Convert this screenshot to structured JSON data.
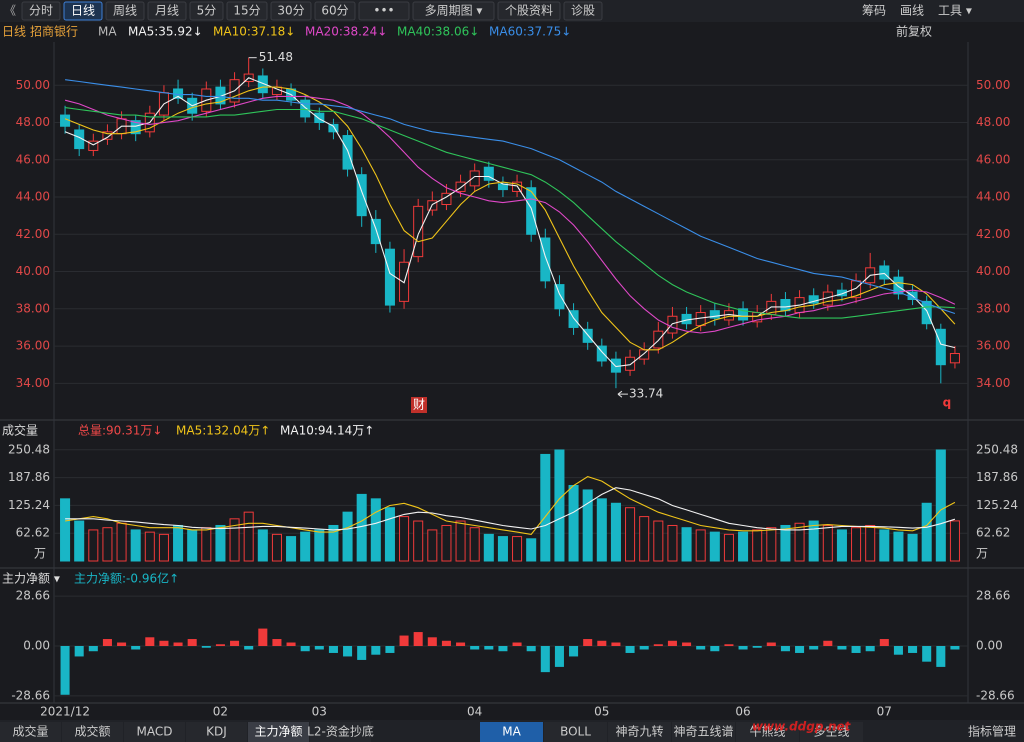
{
  "toolbar": {
    "back": "《",
    "buttons": [
      "分时",
      "日线",
      "周线",
      "月线",
      "5分",
      "15分",
      "30分",
      "60分",
      "•••",
      "多周期图 ▾",
      "个股资料",
      "诊股"
    ],
    "active": "日线",
    "right": [
      "筹码",
      "画线",
      "工具 ▾"
    ]
  },
  "chart_data": [
    {
      "type": "candlestick",
      "period": "日线",
      "stock": "招商银行",
      "indicator": "MA",
      "adjust": "前复权",
      "up_color": "#f03a3a",
      "down_color": "#19b6c6",
      "axis_color": "#e04848",
      "grid": true,
      "markers": [
        "财",
        "q"
      ],
      "categories": [
        "2021/12",
        null,
        null,
        null,
        null,
        null,
        null,
        null,
        null,
        null,
        null,
        "02",
        null,
        null,
        null,
        null,
        null,
        null,
        "03",
        null,
        null,
        null,
        null,
        null,
        null,
        null,
        null,
        null,
        null,
        "04",
        null,
        null,
        null,
        null,
        null,
        null,
        null,
        null,
        "05",
        null,
        null,
        null,
        null,
        null,
        null,
        null,
        null,
        null,
        "06",
        null,
        null,
        null,
        null,
        null,
        null,
        null,
        null,
        null,
        "07",
        null,
        null,
        null,
        null,
        null
      ],
      "open": [
        48.4,
        47.6,
        46.5,
        47.1,
        47.4,
        48.1,
        47.5,
        48.4,
        49.8,
        49.3,
        48.6,
        49.9,
        49.1,
        50.2,
        50.5,
        49.5,
        49.8,
        49.2,
        48.5,
        47.9,
        47.3,
        45.2,
        42.8,
        41.2,
        38.4,
        40.8,
        43.3,
        43.6,
        44.3,
        44.6,
        45.6,
        44.7,
        44.3,
        44.5,
        41.8,
        39.3,
        37.9,
        36.9,
        36.0,
        35.3,
        34.7,
        35.3,
        35.9,
        36.7,
        37.7,
        37.1,
        37.9,
        37.4,
        38.0,
        37.3,
        37.7,
        38.5,
        37.8,
        38.7,
        38.2,
        39.0,
        38.6,
        39.4,
        40.3,
        39.7,
        38.9,
        38.4,
        36.9,
        35.1
      ],
      "high": [
        48.9,
        47.9,
        47.4,
        47.9,
        48.6,
        48.4,
        48.9,
        50.0,
        50.3,
        49.6,
        50.2,
        50.3,
        50.7,
        51.48,
        50.9,
        50.3,
        50.1,
        49.5,
        48.8,
        48.2,
        47.6,
        45.6,
        43.3,
        41.6,
        41.2,
        43.9,
        44.3,
        44.7,
        45.2,
        45.8,
        45.9,
        45.1,
        45.2,
        44.9,
        42.3,
        39.8,
        38.3,
        37.3,
        36.4,
        35.7,
        35.8,
        36.2,
        37.3,
        38.1,
        38.1,
        38.2,
        38.3,
        38.3,
        38.4,
        38.2,
        38.8,
        38.9,
        39.0,
        39.1,
        39.3,
        39.4,
        39.9,
        41.0,
        40.6,
        40.1,
        39.3,
        38.7,
        37.2,
        36.0
      ],
      "low": [
        47.4,
        46.2,
        46.2,
        46.8,
        47.1,
        47.0,
        47.2,
        48.1,
        49.0,
        48.1,
        48.3,
        48.7,
        48.8,
        49.9,
        49.3,
        49.2,
        48.9,
        48.0,
        47.6,
        47.1,
        45.1,
        42.4,
        41.0,
        37.8,
        38.0,
        40.5,
        43.0,
        43.3,
        44.0,
        44.3,
        44.5,
        44.0,
        44.0,
        41.6,
        39.1,
        37.6,
        36.6,
        35.8,
        34.9,
        33.74,
        34.4,
        35.0,
        35.6,
        36.4,
        36.9,
        36.8,
        37.1,
        37.1,
        37.1,
        37.0,
        37.4,
        37.6,
        37.5,
        38.0,
        37.9,
        38.4,
        38.3,
        39.1,
        39.3,
        38.5,
        38.2,
        36.9,
        34.0,
        34.8
      ],
      "close": [
        47.8,
        46.6,
        47.0,
        47.5,
        48.2,
        47.4,
        48.5,
        49.6,
        49.3,
        48.5,
        49.8,
        49.0,
        50.3,
        50.6,
        49.6,
        49.9,
        49.2,
        48.3,
        48.0,
        47.5,
        45.5,
        43.0,
        41.5,
        38.2,
        40.5,
        43.5,
        43.8,
        44.2,
        44.8,
        45.4,
        44.9,
        44.4,
        44.8,
        42.0,
        39.5,
        38.0,
        37.0,
        36.2,
        35.2,
        34.6,
        35.4,
        35.8,
        36.8,
        37.6,
        37.2,
        37.8,
        37.5,
        37.9,
        37.4,
        37.8,
        38.4,
        37.9,
        38.6,
        38.3,
        38.9,
        38.7,
        39.5,
        40.2,
        39.6,
        38.8,
        38.5,
        37.2,
        35.0,
        35.6
      ],
      "series": [
        {
          "name": "MA5:35.92↓",
          "color": "#f2f2f2",
          "values": [
            47.5,
            47.2,
            46.8,
            47.2,
            47.8,
            47.8,
            48.0,
            49.0,
            49.4,
            48.9,
            49.2,
            49.4,
            49.7,
            50.4,
            50.1,
            49.8,
            49.5,
            48.8,
            48.2,
            47.8,
            46.5,
            44.3,
            42.3,
            39.9,
            39.4,
            42.0,
            43.6,
            44.0,
            44.5,
            45.1,
            45.1,
            44.7,
            44.6,
            43.4,
            40.8,
            38.8,
            37.5,
            36.6,
            35.7,
            34.9,
            35.0,
            35.6,
            36.3,
            37.2,
            37.4,
            37.5,
            37.6,
            37.7,
            37.6,
            37.6,
            38.1,
            38.1,
            38.2,
            38.4,
            38.6,
            38.8,
            39.1,
            39.8,
            39.9,
            39.2,
            38.7,
            37.9,
            36.1,
            35.92
          ]
        },
        {
          "name": "MA10:37.18↓",
          "color": "#f0c419",
          "values": [
            48.2,
            47.9,
            47.6,
            47.4,
            47.4,
            47.5,
            47.7,
            48.1,
            48.5,
            48.8,
            49.0,
            49.1,
            49.4,
            49.7,
            49.9,
            49.9,
            49.8,
            49.5,
            49.1,
            48.6,
            47.8,
            46.6,
            45.2,
            43.6,
            42.2,
            41.6,
            41.8,
            42.7,
            43.6,
            44.3,
            44.7,
            44.8,
            44.7,
            44.3,
            43.3,
            41.8,
            40.3,
            39.0,
            37.8,
            37.0,
            36.2,
            35.8,
            35.8,
            36.2,
            36.7,
            37.1,
            37.4,
            37.6,
            37.6,
            37.6,
            37.8,
            37.9,
            38.1,
            38.2,
            38.4,
            38.5,
            38.7,
            39.0,
            39.3,
            39.4,
            39.3,
            38.8,
            38.0,
            37.18
          ]
        },
        {
          "name": "MA20:38.24↓",
          "color": "#e048c8",
          "values": [
            49.2,
            49.0,
            48.7,
            48.4,
            48.2,
            48.0,
            47.9,
            48.0,
            48.1,
            48.3,
            48.5,
            48.7,
            48.9,
            49.1,
            49.3,
            49.4,
            49.4,
            49.4,
            49.3,
            49.2,
            48.9,
            48.5,
            47.9,
            47.2,
            46.4,
            45.6,
            45.0,
            44.5,
            44.2,
            44.0,
            43.8,
            43.7,
            43.8,
            43.9,
            43.7,
            43.2,
            42.5,
            41.6,
            40.6,
            39.6,
            38.7,
            38.0,
            37.4,
            37.0,
            36.8,
            36.7,
            36.8,
            37.0,
            37.2,
            37.4,
            37.5,
            37.6,
            37.8,
            37.9,
            38.1,
            38.2,
            38.4,
            38.6,
            38.8,
            38.9,
            39.0,
            38.9,
            38.6,
            38.24
          ]
        },
        {
          "name": "MA40:38.06↓",
          "color": "#2fc45a",
          "values": [
            48.8,
            48.7,
            48.6,
            48.5,
            48.4,
            48.4,
            48.3,
            48.3,
            48.3,
            48.3,
            48.3,
            48.4,
            48.4,
            48.5,
            48.6,
            48.7,
            48.7,
            48.7,
            48.6,
            48.6,
            48.4,
            48.2,
            47.9,
            47.6,
            47.3,
            47.0,
            46.7,
            46.4,
            46.2,
            46.0,
            45.8,
            45.6,
            45.4,
            45.2,
            44.8,
            44.3,
            43.7,
            43.0,
            42.3,
            41.6,
            41.0,
            40.4,
            39.8,
            39.3,
            38.9,
            38.6,
            38.3,
            38.1,
            37.9,
            37.8,
            37.7,
            37.6,
            37.5,
            37.5,
            37.5,
            37.5,
            37.6,
            37.7,
            37.8,
            37.9,
            38.0,
            38.1,
            38.1,
            38.06
          ]
        },
        {
          "name": "MA60:37.75↓",
          "color": "#3a8ee8",
          "values": [
            50.3,
            50.2,
            50.1,
            50.0,
            49.9,
            49.8,
            49.7,
            49.6,
            49.5,
            49.5,
            49.4,
            49.4,
            49.3,
            49.3,
            49.2,
            49.2,
            49.1,
            49.0,
            49.0,
            48.9,
            48.8,
            48.6,
            48.4,
            48.2,
            47.9,
            47.7,
            47.5,
            47.4,
            47.3,
            47.2,
            47.1,
            47.0,
            46.8,
            46.6,
            46.3,
            46.0,
            45.6,
            45.2,
            44.8,
            44.3,
            43.9,
            43.5,
            43.1,
            42.7,
            42.3,
            41.9,
            41.6,
            41.3,
            41.0,
            40.7,
            40.5,
            40.3,
            40.1,
            39.9,
            39.8,
            39.7,
            39.5,
            39.3,
            39.1,
            38.9,
            38.6,
            38.3,
            38.0,
            37.75
          ]
        }
      ],
      "ylim": [
        32.3,
        52.0
      ],
      "yticks": [
        {
          "value": 34,
          "label": "34.00"
        },
        {
          "value": 36,
          "label": "36.00"
        },
        {
          "value": 38,
          "label": "38.00"
        },
        {
          "value": 40,
          "label": "40.00"
        },
        {
          "value": 42,
          "label": "42.00"
        },
        {
          "value": 44,
          "label": "44.00"
        },
        {
          "value": 46,
          "label": "46.00"
        },
        {
          "value": 48,
          "label": "48.00"
        },
        {
          "value": 50,
          "label": "50.00"
        }
      ]
    },
    {
      "type": "bar",
      "title": "成交量",
      "total_label": "总量:90.31万↓",
      "total_color": "#f04848",
      "unit": "万",
      "axis_color": "#c8c8c8",
      "grid": true,
      "values": [
        140,
        90,
        70,
        75,
        85,
        70,
        65,
        60,
        80,
        70,
        75,
        80,
        95,
        110,
        70,
        60,
        55,
        65,
        70,
        80,
        110,
        150,
        140,
        120,
        100,
        90,
        70,
        80,
        90,
        75,
        60,
        55,
        55,
        50,
        240,
        250,
        170,
        160,
        140,
        130,
        120,
        100,
        90,
        80,
        75,
        70,
        65,
        60,
        65,
        70,
        75,
        80,
        85,
        90,
        80,
        70,
        75,
        80,
        70,
        65,
        60,
        130,
        250,
        90.31
      ],
      "series": [
        {
          "name": "MA5:132.04万↑",
          "color": "#f0c419",
          "values": [
            90,
            95,
            100,
            95,
            85,
            80,
            75,
            75,
            75,
            70,
            70,
            75,
            80,
            85,
            85,
            80,
            75,
            70,
            65,
            65,
            75,
            90,
            110,
            125,
            130,
            120,
            105,
            90,
            85,
            80,
            75,
            70,
            65,
            60,
            100,
            140,
            170,
            190,
            180,
            160,
            140,
            125,
            110,
            100,
            90,
            80,
            75,
            70,
            68,
            68,
            70,
            72,
            76,
            80,
            82,
            80,
            78,
            76,
            74,
            70,
            68,
            80,
            115,
            132.04
          ]
        },
        {
          "name": "MA10:94.14万↑",
          "color": "#f2f2f2",
          "values": [
            95,
            95,
            95,
            92,
            90,
            88,
            85,
            82,
            80,
            76,
            74,
            73,
            74,
            76,
            78,
            78,
            76,
            74,
            72,
            70,
            72,
            78,
            85,
            95,
            105,
            110,
            108,
            102,
            98,
            92,
            86,
            80,
            76,
            72,
            80,
            95,
            110,
            130,
            150,
            165,
            160,
            150,
            140,
            125,
            115,
            105,
            95,
            85,
            80,
            75,
            72,
            70,
            70,
            72,
            75,
            78,
            78,
            78,
            77,
            76,
            74,
            76,
            84,
            94.14
          ]
        }
      ],
      "ylim": [
        0,
        268
      ],
      "yticks": [
        62.62,
        125.24,
        187.86,
        250.48
      ]
    },
    {
      "type": "bar",
      "title": "主力净额 ▾",
      "legend": "主力净额:-0.96亿↑",
      "legend_color": "#19b6c6",
      "up_color": "#f03a3a",
      "down_color": "#19b6c6",
      "axis_color": "#c8c8c8",
      "grid": true,
      "values": [
        -28,
        -6,
        -3,
        4,
        2,
        -2,
        5,
        3,
        2,
        4,
        -1,
        1,
        3,
        -2,
        10,
        4,
        2,
        -3,
        -2,
        -4,
        -6,
        -8,
        -5,
        -4,
        6,
        8,
        5,
        3,
        2,
        -2,
        -2,
        -3,
        2,
        -3,
        -15,
        -12,
        -6,
        4,
        3,
        2,
        -4,
        -2,
        1,
        3,
        2,
        -2,
        -3,
        1,
        -2,
        -1,
        2,
        -3,
        -4,
        -2,
        3,
        -2,
        -4,
        -3,
        4,
        -5,
        -4,
        -9,
        -12,
        -2
      ],
      "ylim": [
        -31,
        31
      ],
      "yticks": [
        {
          "value": -28.66,
          "label": "-28.66"
        },
        {
          "value": 0,
          "label": "0.00"
        },
        {
          "value": 28.66,
          "label": "28.66"
        }
      ]
    }
  ],
  "tabs": {
    "left": [
      "成交量",
      "成交额",
      "MACD",
      "KDJ",
      "主力净额",
      "L2-资金抄底"
    ],
    "left_active": "主力净额",
    "right": [
      "MA",
      "BOLL",
      "神奇九转",
      "神奇五线谱",
      "牛熊线",
      "多空线"
    ],
    "right_active": "MA",
    "manage": "指标管理",
    "watermark": "www.ddgp.net"
  }
}
